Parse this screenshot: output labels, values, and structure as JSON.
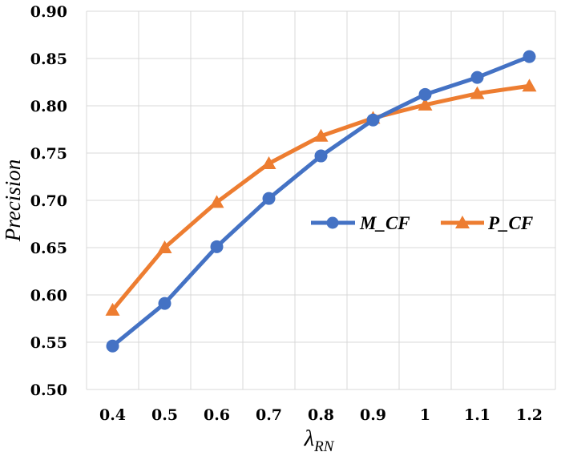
{
  "chart_data": {
    "type": "line",
    "title": "",
    "xlabel": "λ",
    "xlabel_subscript": "RN",
    "ylabel": "Precision",
    "categories": [
      "0.4",
      "0.5",
      "0.6",
      "0.7",
      "0.8",
      "0.9",
      "1",
      "1.1",
      "1.2"
    ],
    "y_ticks": [
      "0.50",
      "0.55",
      "0.60",
      "0.65",
      "0.70",
      "0.75",
      "0.80",
      "0.85",
      "0.90"
    ],
    "ylim": [
      0.5,
      0.9
    ],
    "grid": true,
    "legend_position": "center-right",
    "series": [
      {
        "name": "M_CF",
        "color": "#4472c4",
        "marker": "circle",
        "values": [
          0.546,
          0.591,
          0.651,
          0.702,
          0.747,
          0.785,
          0.812,
          0.83,
          0.852
        ]
      },
      {
        "name": "P_CF",
        "color": "#ed7d31",
        "marker": "triangle",
        "values": [
          0.584,
          0.65,
          0.698,
          0.739,
          0.768,
          0.787,
          0.801,
          0.813,
          0.821
        ]
      }
    ]
  }
}
